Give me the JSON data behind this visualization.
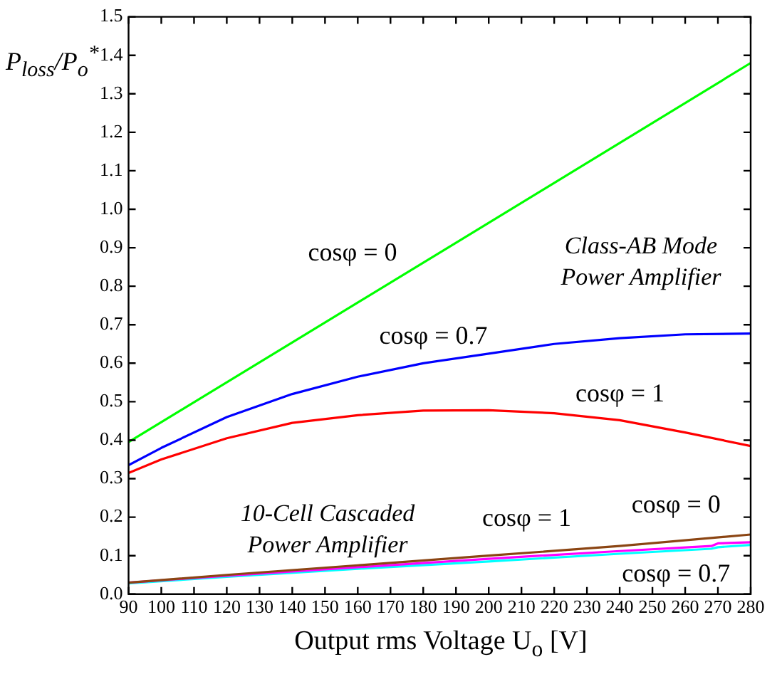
{
  "chart_data": {
    "type": "line",
    "xlabel": "Output rms Voltage U$_{o}$ [V]",
    "ylabel": "P$_{loss}$/P$_{o}$$^{*}$",
    "xlim": [
      90,
      280
    ],
    "xticks": [
      90,
      100,
      110,
      120,
      130,
      140,
      150,
      160,
      170,
      180,
      190,
      200,
      210,
      220,
      230,
      240,
      250,
      260,
      270,
      280
    ],
    "ylim": [
      0,
      1.5
    ],
    "yticks": [
      {
        "value": 0,
        "label": "0.0"
      },
      0.1,
      0.2,
      0.3,
      0.4,
      0.5,
      0.6,
      0.7,
      0.8,
      0.9,
      {
        "value": 1,
        "label": "1.0"
      },
      1.1,
      1.2,
      1.3,
      1.4,
      1.5
    ],
    "grid": false,
    "legend": false,
    "marker": "none",
    "line_style": "solid",
    "series": [
      {
        "name": "cosφ = 0",
        "color": "#00ff00",
        "x": [
          90,
          140,
          190,
          240,
          280
        ],
        "values": [
          0.395,
          0.654,
          0.913,
          1.172,
          1.38
        ]
      },
      {
        "name": "cosφ = 0.7",
        "color": "#0000ff",
        "x": [
          90,
          100,
          120,
          140,
          160,
          180,
          200,
          220,
          240,
          260,
          280
        ],
        "values": [
          0.335,
          0.38,
          0.46,
          0.52,
          0.565,
          0.6,
          0.625,
          0.65,
          0.665,
          0.675,
          0.677
        ]
      },
      {
        "name": "cosφ = 1",
        "color": "#ff0000",
        "x": [
          90,
          100,
          120,
          140,
          160,
          180,
          200,
          220,
          240,
          260,
          280
        ],
        "values": [
          0.315,
          0.35,
          0.405,
          0.445,
          0.465,
          0.477,
          0.478,
          0.47,
          0.452,
          0.42,
          0.385
        ]
      },
      {
        "name": "cosφ = 0",
        "color": "#8b4513",
        "x": [
          90,
          120,
          160,
          200,
          240,
          280
        ],
        "values": [
          0.03,
          0.05,
          0.075,
          0.1,
          0.125,
          0.155
        ]
      },
      {
        "name": "cosφ = 1",
        "color": "#ff00ff",
        "x": [
          90,
          120,
          160,
          200,
          240,
          268,
          270,
          280
        ],
        "values": [
          0.03,
          0.048,
          0.07,
          0.092,
          0.112,
          0.125,
          0.132,
          0.135
        ]
      },
      {
        "name": "cosφ = 0.7",
        "color": "#00ffff",
        "x": [
          90,
          120,
          160,
          200,
          240,
          268,
          270,
          280
        ],
        "values": [
          0.028,
          0.045,
          0.066,
          0.085,
          0.105,
          0.118,
          0.122,
          0.128
        ]
      }
    ],
    "annotations": [
      "Class-AB Mode Power Amplifier",
      "10-Cell Cascaded Power Amplifier"
    ]
  }
}
